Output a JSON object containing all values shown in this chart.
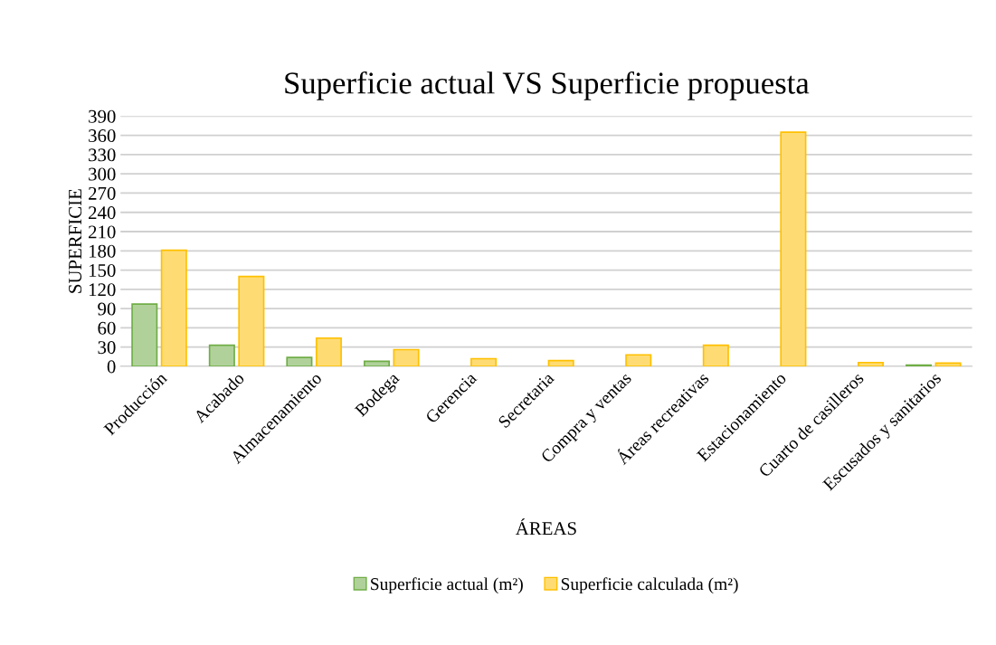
{
  "chart_data": {
    "type": "bar",
    "title": "Superficie actual VS Superficie propuesta",
    "xlabel": "ÁREAS",
    "ylabel": "SUPERFICIE",
    "categories": [
      "Producción",
      "Acabado",
      "Almacenamiento",
      "Bodega",
      "Gerencia",
      "Secretaria",
      "Compra y ventas",
      "Áreas recreativas",
      "Estacionamiento",
      "Cuarto de casilleros",
      "Escusados y sanitarios"
    ],
    "series": [
      {
        "name": "Superficie actual (m²)",
        "color": "#70ad47",
        "values": [
          97,
          33,
          14,
          8,
          null,
          null,
          null,
          null,
          null,
          null,
          2
        ]
      },
      {
        "name": "Superficie calculada (m²)",
        "color": "#ffc000",
        "values": [
          181,
          140,
          44,
          26,
          12,
          9,
          18,
          33,
          365,
          6,
          5
        ]
      }
    ],
    "ylim": [
      0,
      390
    ],
    "yticks": [
      0,
      30,
      60,
      90,
      120,
      150,
      180,
      210,
      240,
      270,
      300,
      330,
      360,
      390
    ],
    "grid": "y",
    "legend": "bottom"
  }
}
